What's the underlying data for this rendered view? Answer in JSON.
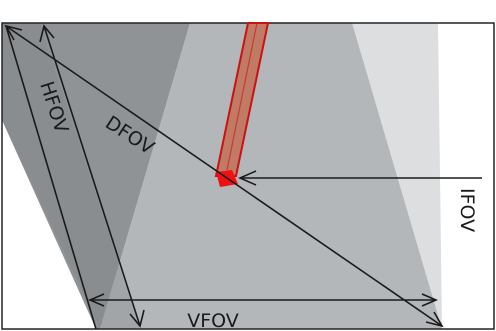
{
  "labels": {
    "hfov": "HFOV",
    "dfov": "DFOV",
    "vfov": "VFOV",
    "ifov": "IFOV"
  },
  "colors": {
    "background": "#ffffff",
    "frame_border": "#222222",
    "region_light": "#dcdedf",
    "region_mid": "#b4b7b9",
    "region_dark": "#8f9396",
    "pixel_column_fill": "#c07a66",
    "pixel_column_edge": "#cc1111",
    "pixel_marker": "#ee1111",
    "line": "#1a1a1a"
  }
}
